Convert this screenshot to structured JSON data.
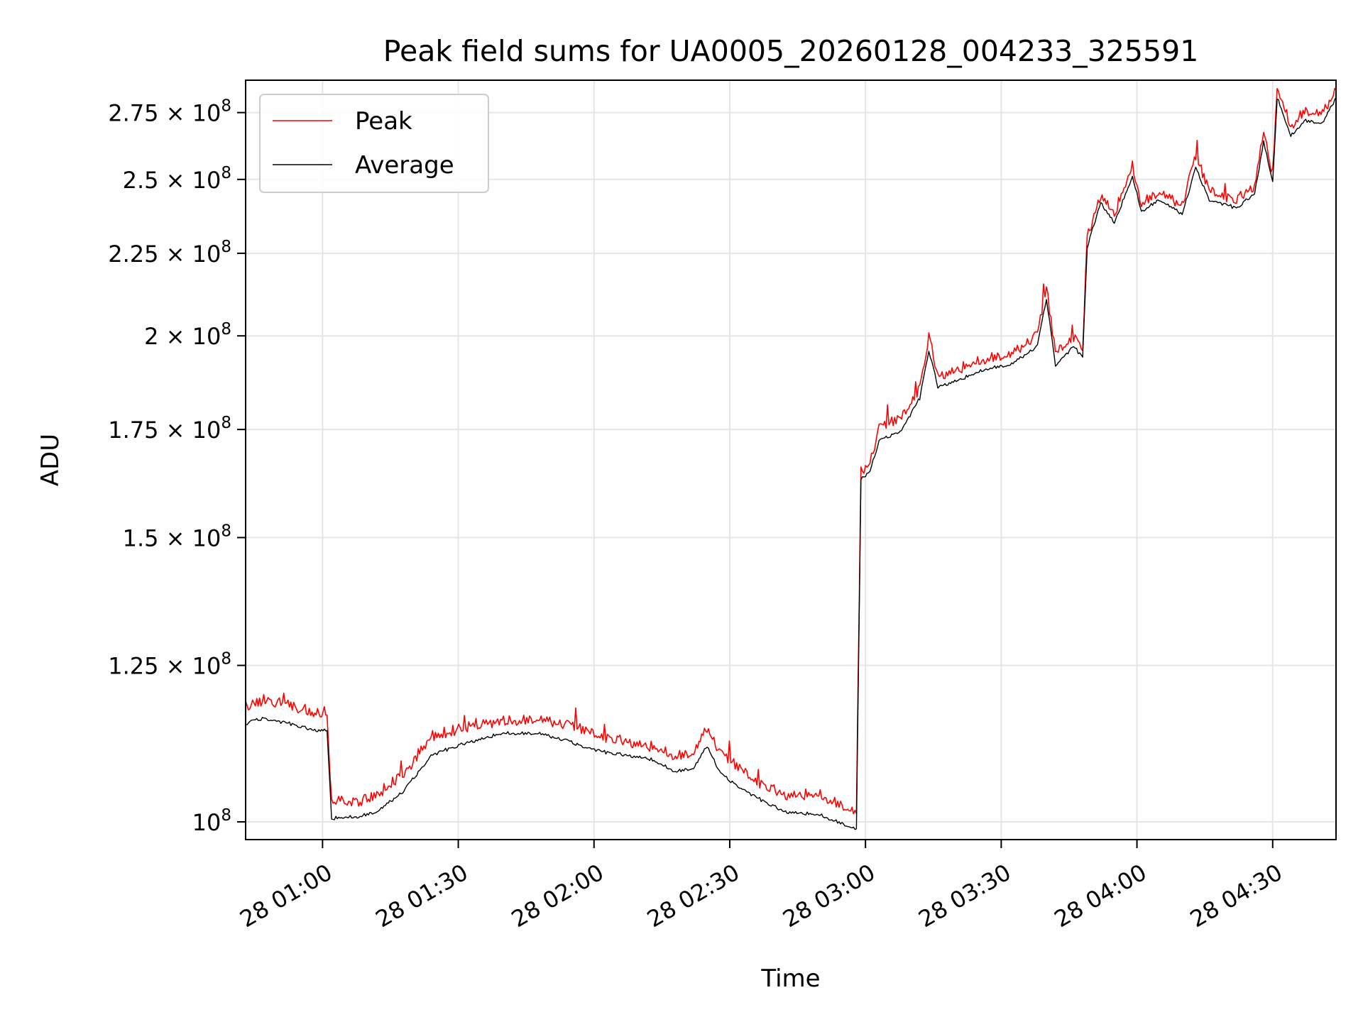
{
  "chart_data": {
    "type": "line",
    "title": "Peak field sums for UA0005_20260128_004233_325591",
    "xlabel": "Time",
    "ylabel": "ADU",
    "x_range": [
      "28 00:43",
      "28 04:44"
    ],
    "yscale": "log",
    "ylim": [
      97500000,
      288000000
    ],
    "grid": true,
    "legend_position": "upper-left",
    "x_ticks": [
      {
        "time": "28 01:00",
        "label": "28 01:00"
      },
      {
        "time": "28 01:30",
        "label": "28 01:30"
      },
      {
        "time": "28 02:00",
        "label": "28 02:00"
      },
      {
        "time": "28 02:30",
        "label": "28 02:30"
      },
      {
        "time": "28 03:00",
        "label": "28 03:00"
      },
      {
        "time": "28 03:30",
        "label": "28 03:30"
      },
      {
        "time": "28 04:00",
        "label": "28 04:00"
      },
      {
        "time": "28 04:30",
        "label": "28 04:30"
      }
    ],
    "y_ticks": [
      {
        "value": 100000000,
        "mantissa": "",
        "exp": "8"
      },
      {
        "value": 125000000,
        "mantissa": "1.25",
        "exp": "8"
      },
      {
        "value": 150000000,
        "mantissa": "1.5",
        "exp": "8"
      },
      {
        "value": 175000000,
        "mantissa": "1.75",
        "exp": "8"
      },
      {
        "value": 200000000,
        "mantissa": "2",
        "exp": "8"
      },
      {
        "value": 225000000,
        "mantissa": "2.25",
        "exp": "8"
      },
      {
        "value": 250000000,
        "mantissa": "2.5",
        "exp": "8"
      },
      {
        "value": 275000000,
        "mantissa": "2.75",
        "exp": "8"
      }
    ],
    "series": [
      {
        "name": "Peak",
        "color": "#ff0000",
        "points": [
          [
            "28 00:43",
            118000000
          ],
          [
            "28 00:47",
            119000000
          ],
          [
            "28 00:53",
            118000000
          ],
          [
            "28 00:58",
            117000000
          ],
          [
            "28 01:01",
            117000000
          ],
          [
            "28 01:02",
            103000000
          ],
          [
            "28 01:08",
            103000000
          ],
          [
            "28 01:12",
            104000000
          ],
          [
            "28 01:18",
            107000000
          ],
          [
            "28 01:24",
            113000000
          ],
          [
            "28 01:32",
            114500000
          ],
          [
            "28 01:40",
            115500000
          ],
          [
            "28 01:48",
            116000000
          ],
          [
            "28 01:55",
            114500000
          ],
          [
            "28 02:02",
            113000000
          ],
          [
            "28 02:12",
            111500000
          ],
          [
            "28 02:18",
            110000000
          ],
          [
            "28 02:22",
            110500000
          ],
          [
            "28 02:25",
            114500000
          ],
          [
            "28 02:28",
            110000000
          ],
          [
            "28 02:36",
            106000000
          ],
          [
            "28 02:42",
            104000000
          ],
          [
            "28 02:50",
            104000000
          ],
          [
            "28 02:58",
            101500000
          ],
          [
            "28 02:59",
            165000000
          ],
          [
            "28 03:01",
            167000000
          ],
          [
            "28 03:03",
            175000000
          ],
          [
            "28 03:08",
            178000000
          ],
          [
            "28 03:12",
            186000000
          ],
          [
            "28 03:14",
            200000000
          ],
          [
            "28 03:16",
            189000000
          ],
          [
            "28 03:21",
            191000000
          ],
          [
            "28 03:27",
            194000000
          ],
          [
            "28 03:32",
            195000000
          ],
          [
            "28 03:38",
            200000000
          ],
          [
            "28 03:40",
            214000000
          ],
          [
            "28 03:42",
            195000000
          ],
          [
            "28 03:46",
            200000000
          ],
          [
            "28 03:48",
            197000000
          ],
          [
            "28 03:49",
            230000000
          ],
          [
            "28 03:52",
            245000000
          ],
          [
            "28 03:55",
            238000000
          ],
          [
            "28 03:59",
            255000000
          ],
          [
            "28 04:01",
            242000000
          ],
          [
            "28 04:05",
            246000000
          ],
          [
            "28 04:10",
            241000000
          ],
          [
            "28 04:13",
            258000000
          ],
          [
            "28 04:16",
            246000000
          ],
          [
            "28 04:22",
            243000000
          ],
          [
            "28 04:26",
            248000000
          ],
          [
            "28 04:28",
            268000000
          ],
          [
            "28 04:30",
            252000000
          ],
          [
            "28 04:31",
            285000000
          ],
          [
            "28 04:34",
            270000000
          ],
          [
            "28 04:37",
            276000000
          ],
          [
            "28 04:41",
            275000000
          ],
          [
            "28 04:44",
            284000000
          ]
        ]
      },
      {
        "name": "Average",
        "color": "#000000",
        "points": [
          [
            "28 00:43",
            115000000
          ],
          [
            "28 00:47",
            116000000
          ],
          [
            "28 00:53",
            115000000
          ],
          [
            "28 00:58",
            114000000
          ],
          [
            "28 01:01",
            114000000
          ],
          [
            "28 01:02",
            100500000
          ],
          [
            "28 01:08",
            100800000
          ],
          [
            "28 01:12",
            101500000
          ],
          [
            "28 01:18",
            104500000
          ],
          [
            "28 01:24",
            110000000
          ],
          [
            "28 01:32",
            112000000
          ],
          [
            "28 01:40",
            113500000
          ],
          [
            "28 01:48",
            113500000
          ],
          [
            "28 01:55",
            112000000
          ],
          [
            "28 02:02",
            110500000
          ],
          [
            "28 02:12",
            109500000
          ],
          [
            "28 02:18",
            107500000
          ],
          [
            "28 02:22",
            108000000
          ],
          [
            "28 02:25",
            111500000
          ],
          [
            "28 02:28",
            107000000
          ],
          [
            "28 02:36",
            103500000
          ],
          [
            "28 02:42",
            101500000
          ],
          [
            "28 02:50",
            101000000
          ],
          [
            "28 02:58",
            99000000
          ],
          [
            "28 02:59",
            163000000
          ],
          [
            "28 03:01",
            165000000
          ],
          [
            "28 03:03",
            172000000
          ],
          [
            "28 03:08",
            175000000
          ],
          [
            "28 03:12",
            183000000
          ],
          [
            "28 03:14",
            196000000
          ],
          [
            "28 03:16",
            186000000
          ],
          [
            "28 03:21",
            188000000
          ],
          [
            "28 03:27",
            191000000
          ],
          [
            "28 03:32",
            192000000
          ],
          [
            "28 03:38",
            197000000
          ],
          [
            "28 03:40",
            211000000
          ],
          [
            "28 03:42",
            192000000
          ],
          [
            "28 03:46",
            197000000
          ],
          [
            "28 03:48",
            194000000
          ],
          [
            "28 03:49",
            227000000
          ],
          [
            "28 03:52",
            242000000
          ],
          [
            "28 03:55",
            235000000
          ],
          [
            "28 03:59",
            251000000
          ],
          [
            "28 04:01",
            239000000
          ],
          [
            "28 04:05",
            243000000
          ],
          [
            "28 04:10",
            238000000
          ],
          [
            "28 04:13",
            254000000
          ],
          [
            "28 04:16",
            243000000
          ],
          [
            "28 04:22",
            240000000
          ],
          [
            "28 04:26",
            245000000
          ],
          [
            "28 04:28",
            264000000
          ],
          [
            "28 04:30",
            249000000
          ],
          [
            "28 04:31",
            281000000
          ],
          [
            "28 04:34",
            266000000
          ],
          [
            "28 04:37",
            272000000
          ],
          [
            "28 04:41",
            271000000
          ],
          [
            "28 04:44",
            281000000
          ]
        ]
      }
    ]
  }
}
